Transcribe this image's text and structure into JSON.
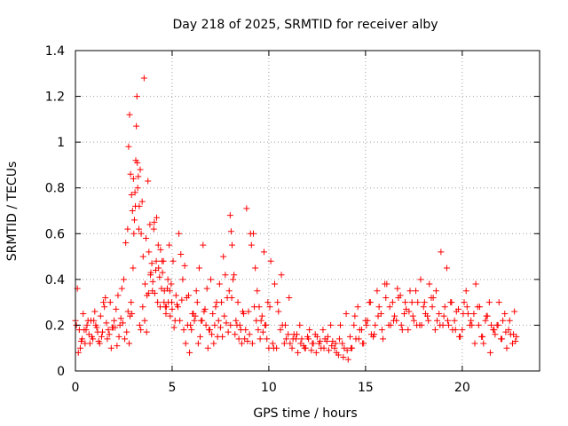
{
  "chart_data": {
    "type": "scatter",
    "title": "Day 218 of 2025, SRMTID for receiver alby",
    "xlabel": "GPS time / hours",
    "ylabel": "SRMTID / TECUs",
    "xlim": [
      0,
      24
    ],
    "ylim": [
      0,
      1.4
    ],
    "x_ticks": [
      0,
      5,
      10,
      15,
      20
    ],
    "x_tick_labels": [
      "0",
      "5",
      "10",
      "15",
      "20"
    ],
    "y_ticks": [
      0,
      0.2,
      0.4,
      0.6,
      0.8,
      1.0,
      1.2,
      1.4
    ],
    "y_tick_labels": [
      "0",
      "0.2",
      "0.4",
      "0.6",
      "0.8",
      "1",
      "1.2",
      "1.4"
    ],
    "grid": true,
    "marker": "+",
    "marker_color": "#ff0000",
    "series": [
      {
        "name": "SRMTID",
        "x": [
          0.0,
          0.1,
          0.2,
          0.3,
          0.4,
          0.5,
          0.6,
          0.7,
          0.8,
          0.9,
          1.0,
          1.1,
          1.2,
          1.3,
          1.4,
          1.5,
          1.6,
          1.7,
          1.8,
          1.9,
          2.0,
          2.1,
          2.2,
          2.3,
          2.4,
          2.5,
          2.6,
          2.7,
          2.75,
          2.8,
          2.85,
          2.9,
          2.95,
          3.0,
          3.05,
          3.1,
          3.15,
          3.2,
          3.25,
          3.3,
          3.4,
          3.5,
          3.6,
          3.7,
          3.8,
          3.9,
          4.0,
          4.1,
          4.2,
          4.3,
          4.4,
          4.5,
          4.6,
          4.7,
          4.8,
          4.9,
          5.0,
          5.1,
          5.2,
          5.3,
          5.4,
          5.5,
          5.6,
          5.7,
          5.8,
          5.9,
          6.0,
          6.1,
          6.2,
          6.3,
          6.4,
          6.5,
          6.6,
          6.7,
          6.8,
          6.9,
          7.0,
          7.1,
          7.2,
          7.3,
          7.4,
          7.5,
          7.6,
          7.7,
          7.8,
          7.9,
          8.0,
          8.05,
          8.1,
          8.2,
          8.3,
          8.4,
          8.5,
          8.6,
          8.7,
          8.8,
          8.9,
          9.0,
          9.1,
          9.2,
          9.3,
          9.4,
          9.5,
          9.6,
          9.7,
          9.8,
          9.9,
          10.0,
          10.2,
          10.4,
          10.6,
          10.8,
          11.0,
          11.2,
          11.4,
          11.6,
          11.8,
          12.0,
          12.2,
          12.4,
          12.6,
          12.8,
          13.0,
          13.2,
          13.4,
          13.6,
          13.8,
          14.0,
          14.2,
          14.4,
          14.6,
          14.8,
          15.0,
          15.2,
          15.4,
          15.6,
          15.8,
          16.0,
          16.2,
          16.4,
          16.6,
          16.8,
          17.0,
          17.2,
          17.4,
          17.6,
          17.8,
          18.0,
          18.2,
          18.4,
          18.6,
          18.8,
          19.0,
          19.2,
          19.4,
          19.6,
          19.8,
          20.0,
          20.2,
          20.4,
          20.6,
          20.8,
          21.0,
          21.2,
          21.4,
          21.6,
          21.8,
          22.0,
          22.2,
          22.4,
          22.6,
          22.8,
          0.05,
          0.25,
          0.45,
          0.65,
          0.85,
          1.05,
          1.25,
          1.45,
          1.65,
          1.85,
          2.05,
          2.25,
          2.45,
          2.65,
          2.72,
          2.78,
          2.82,
          2.88,
          2.92,
          2.98,
          3.02,
          3.08,
          3.12,
          3.18,
          3.22,
          3.28,
          3.35,
          3.45,
          3.55,
          3.65,
          3.75,
          3.85,
          3.95,
          4.05,
          4.15,
          4.25,
          4.35,
          4.45,
          4.55,
          4.65,
          4.75,
          4.85,
          4.95,
          5.05,
          5.25,
          5.45,
          5.65,
          5.85,
          6.05,
          6.25,
          6.45,
          6.55,
          6.65,
          6.85,
          7.05,
          7.25,
          7.45,
          7.65,
          7.85,
          8.02,
          8.08,
          8.25,
          8.45,
          8.65,
          8.85,
          9.05,
          9.25,
          9.35,
          9.45,
          9.55,
          9.65,
          9.75,
          9.95,
          10.1,
          10.3,
          10.5,
          10.7,
          10.9,
          11.1,
          11.3,
          11.5,
          11.7,
          11.9,
          12.1,
          12.3,
          12.5,
          12.7,
          12.9,
          13.1,
          13.3,
          13.5,
          13.7,
          13.9,
          14.1,
          14.3,
          14.5,
          14.7,
          14.9,
          15.1,
          15.3,
          15.5,
          15.7,
          15.9,
          16.1,
          16.3,
          16.5,
          16.7,
          16.9,
          17.1,
          17.3,
          17.5,
          17.7,
          17.9,
          18.1,
          18.3,
          18.5,
          18.7,
          18.9,
          19.1,
          19.3,
          19.5,
          19.7,
          19.9,
          20.1,
          20.3,
          20.5,
          20.7,
          20.9,
          21.1,
          21.3,
          21.5,
          21.7,
          21.9,
          22.1,
          22.3,
          22.5,
          22.7,
          0.15,
          0.35,
          0.55,
          0.75,
          0.95,
          1.15,
          1.35,
          1.55,
          1.75,
          1.95,
          2.15,
          2.35,
          2.55,
          3.32,
          3.38,
          3.48,
          3.58,
          3.68,
          3.78,
          3.88,
          3.98,
          4.08,
          4.18,
          4.28,
          4.38,
          4.48,
          4.58,
          4.68,
          4.78,
          4.88,
          4.98,
          5.15,
          5.35,
          5.55,
          5.75,
          5.95,
          6.15,
          6.35,
          6.75,
          6.95,
          7.15,
          7.35,
          7.55,
          7.75,
          7.95,
          8.15,
          8.35,
          8.55,
          8.75,
          8.95,
          9.15,
          9.85,
          10.05,
          10.25,
          10.45,
          10.65,
          10.85,
          11.05,
          11.25,
          11.45,
          11.65,
          11.85,
          12.05,
          12.25,
          12.45,
          12.65,
          12.85,
          13.05,
          13.25,
          13.45,
          13.65,
          13.85,
          14.05,
          14.25,
          14.45,
          14.65,
          14.85,
          15.05,
          15.25,
          15.45,
          15.65,
          15.85,
          16.05,
          16.25,
          16.45,
          16.65,
          16.85,
          17.05,
          17.25,
          17.45,
          17.65,
          17.85,
          18.05,
          18.25,
          18.45,
          18.65,
          18.85,
          19.05,
          19.25,
          19.45,
          19.65,
          19.85,
          20.05,
          20.25,
          20.45,
          20.65,
          20.85,
          21.05,
          21.25,
          21.45,
          21.65,
          21.85,
          22.05,
          22.25,
          22.45,
          22.65,
          22.75
        ],
        "y": [
          0.22,
          0.36,
          0.18,
          0.13,
          0.25,
          0.12,
          0.2,
          0.16,
          0.22,
          0.14,
          0.26,
          0.19,
          0.13,
          0.24,
          0.17,
          0.28,
          0.21,
          0.18,
          0.3,
          0.19,
          0.22,
          0.27,
          0.33,
          0.2,
          0.36,
          0.4,
          0.56,
          0.62,
          0.98,
          1.12,
          0.86,
          0.77,
          0.7,
          0.84,
          0.66,
          0.72,
          1.07,
          0.91,
          0.85,
          0.72,
          0.6,
          0.5,
          0.38,
          0.33,
          0.52,
          0.43,
          0.39,
          0.34,
          0.67,
          0.45,
          0.53,
          0.43,
          0.35,
          0.28,
          0.3,
          0.24,
          0.27,
          0.19,
          0.33,
          0.28,
          0.22,
          0.31,
          0.18,
          0.12,
          0.2,
          0.08,
          0.18,
          0.25,
          0.24,
          0.3,
          0.45,
          0.22,
          0.55,
          0.27,
          0.36,
          0.18,
          0.4,
          0.25,
          0.2,
          0.3,
          0.22,
          0.19,
          0.15,
          0.24,
          0.21,
          0.17,
          0.68,
          0.61,
          0.55,
          0.42,
          0.22,
          0.3,
          0.2,
          0.12,
          0.25,
          0.18,
          0.13,
          0.16,
          0.55,
          0.6,
          0.45,
          0.35,
          0.28,
          0.22,
          0.17,
          0.2,
          0.14,
          0.1,
          0.12,
          0.1,
          0.18,
          0.12,
          0.16,
          0.1,
          0.14,
          0.2,
          0.11,
          0.15,
          0.09,
          0.16,
          0.12,
          0.18,
          0.13,
          0.2,
          0.1,
          0.07,
          0.12,
          0.25,
          0.15,
          0.2,
          0.28,
          0.18,
          0.22,
          0.3,
          0.15,
          0.35,
          0.25,
          0.38,
          0.2,
          0.3,
          0.22,
          0.33,
          0.25,
          0.18,
          0.3,
          0.35,
          0.2,
          0.28,
          0.24,
          0.32,
          0.18,
          0.25,
          0.2,
          0.45,
          0.3,
          0.22,
          0.27,
          0.18,
          0.35,
          0.2,
          0.25,
          0.28,
          0.15,
          0.22,
          0.3,
          0.18,
          0.2,
          0.14,
          0.25,
          0.18,
          0.12,
          0.15,
          0.2,
          0.1,
          0.18,
          0.22,
          0.15,
          0.2,
          0.12,
          0.3,
          0.14,
          0.1,
          0.19,
          0.15,
          0.21,
          0.17,
          0.26,
          0.12,
          0.24,
          0.3,
          0.25,
          0.45,
          0.6,
          0.78,
          0.92,
          1.2,
          0.8,
          0.62,
          0.88,
          0.74,
          1.28,
          0.58,
          0.83,
          0.64,
          0.47,
          0.62,
          0.44,
          0.3,
          0.41,
          0.36,
          0.48,
          0.28,
          0.36,
          0.55,
          0.38,
          0.48,
          0.29,
          0.51,
          0.46,
          0.33,
          0.25,
          0.35,
          0.15,
          0.22,
          0.26,
          0.1,
          0.16,
          0.28,
          0.38,
          0.5,
          0.32,
          0.2,
          0.32,
          0.16,
          0.14,
          0.26,
          0.71,
          0.6,
          0.28,
          0.22,
          0.18,
          0.14,
          0.24,
          0.52,
          0.3,
          0.48,
          0.38,
          0.26,
          0.2,
          0.14,
          0.12,
          0.16,
          0.08,
          0.14,
          0.1,
          0.18,
          0.12,
          0.15,
          0.1,
          0.14,
          0.09,
          0.13,
          0.08,
          0.2,
          0.1,
          0.05,
          0.1,
          0.14,
          0.18,
          0.12,
          0.22,
          0.16,
          0.2,
          0.28,
          0.14,
          0.38,
          0.2,
          0.24,
          0.32,
          0.18,
          0.27,
          0.35,
          0.22,
          0.3,
          0.2,
          0.25,
          0.38,
          0.32,
          0.22,
          0.52,
          0.28,
          0.2,
          0.18,
          0.26,
          0.15,
          0.3,
          0.25,
          0.2,
          0.38,
          0.28,
          0.12,
          0.24,
          0.2,
          0.16,
          0.3,
          0.22,
          0.1,
          0.16,
          0.26,
          0.08,
          0.14,
          0.18,
          0.12,
          0.22,
          0.17,
          0.15,
          0.32,
          0.16,
          0.19,
          0.11,
          0.23,
          0.14,
          0.2,
          0.18,
          0.28,
          0.22,
          0.17,
          0.34,
          0.42,
          0.35,
          0.65,
          0.48,
          0.55,
          0.28,
          0.48,
          0.3,
          0.25,
          0.4,
          0.35,
          0.3,
          0.22,
          0.6,
          0.4,
          0.32,
          0.2,
          0.22,
          0.12,
          0.2,
          0.18,
          0.12,
          0.15,
          0.3,
          0.42,
          0.35,
          0.4,
          0.2,
          0.18,
          0.14,
          0.26,
          0.12,
          0.2,
          0.28,
          0.1,
          0.3,
          0.42,
          0.2,
          0.32,
          0.14,
          0.16,
          0.12,
          0.1,
          0.14,
          0.12,
          0.08,
          0.13,
          0.1,
          0.15,
          0.11,
          0.12,
          0.14,
          0.06,
          0.09,
          0.1,
          0.24,
          0.14,
          0.12,
          0.2,
          0.3,
          0.16,
          0.24,
          0.18,
          0.32,
          0.28,
          0.22,
          0.36,
          0.2,
          0.3,
          0.26,
          0.24,
          0.2,
          0.4,
          0.3,
          0.22,
          0.28,
          0.35,
          0.2,
          0.24,
          0.22,
          0.3,
          0.18,
          0.15,
          0.25,
          0.28,
          0.22,
          0.12,
          0.2,
          0.15,
          0.24,
          0.08,
          0.18,
          0.2,
          0.14,
          0.17,
          0.22,
          0.16,
          0.13
        ]
      }
    ]
  }
}
